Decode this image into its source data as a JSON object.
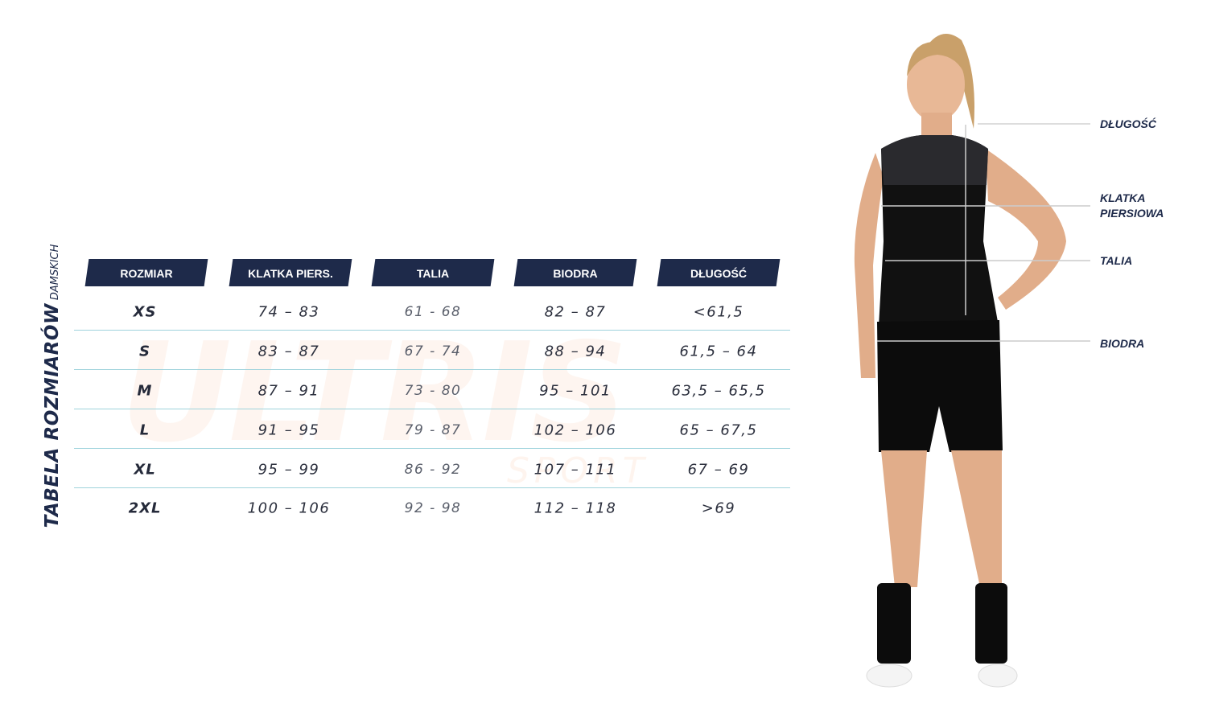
{
  "title": {
    "main": "TABELA ROZMIARÓW",
    "sub": "DAMSKICH"
  },
  "watermark": {
    "brand": "ULTRIS",
    "sub": "SPORT"
  },
  "table": {
    "headers": [
      "ROZMIAR",
      "KLATKA PIERS.",
      "TALIA",
      "BIODRA",
      "DŁUGOŚĆ"
    ],
    "rows": [
      [
        "XS",
        "74 – 83",
        "61 - 68",
        "82 – 87",
        "<61,5"
      ],
      [
        "S",
        "83 – 87",
        "67 - 74",
        "88 – 94",
        "61,5 – 64"
      ],
      [
        "M",
        "87 – 91",
        "73 - 80",
        "95 – 101",
        "63,5 – 65,5"
      ],
      [
        "L",
        "91 – 95",
        "79 - 87",
        "102 – 106",
        "65 – 67,5"
      ],
      [
        "XL",
        "95 – 99",
        "86 - 92",
        "107 – 111",
        "67 – 69"
      ],
      [
        "2XL",
        "100 – 106",
        "92 - 98",
        "112 – 118",
        ">69"
      ]
    ]
  },
  "figure_labels": {
    "length": "DŁUGOŚĆ",
    "chest_1": "KLATKA",
    "chest_2": "PIERSIOWA",
    "waist": "TALIA",
    "hips": "BIODRA"
  },
  "colors": {
    "header_bg": "#1e2a4a",
    "divider": "#9fd3dc"
  }
}
